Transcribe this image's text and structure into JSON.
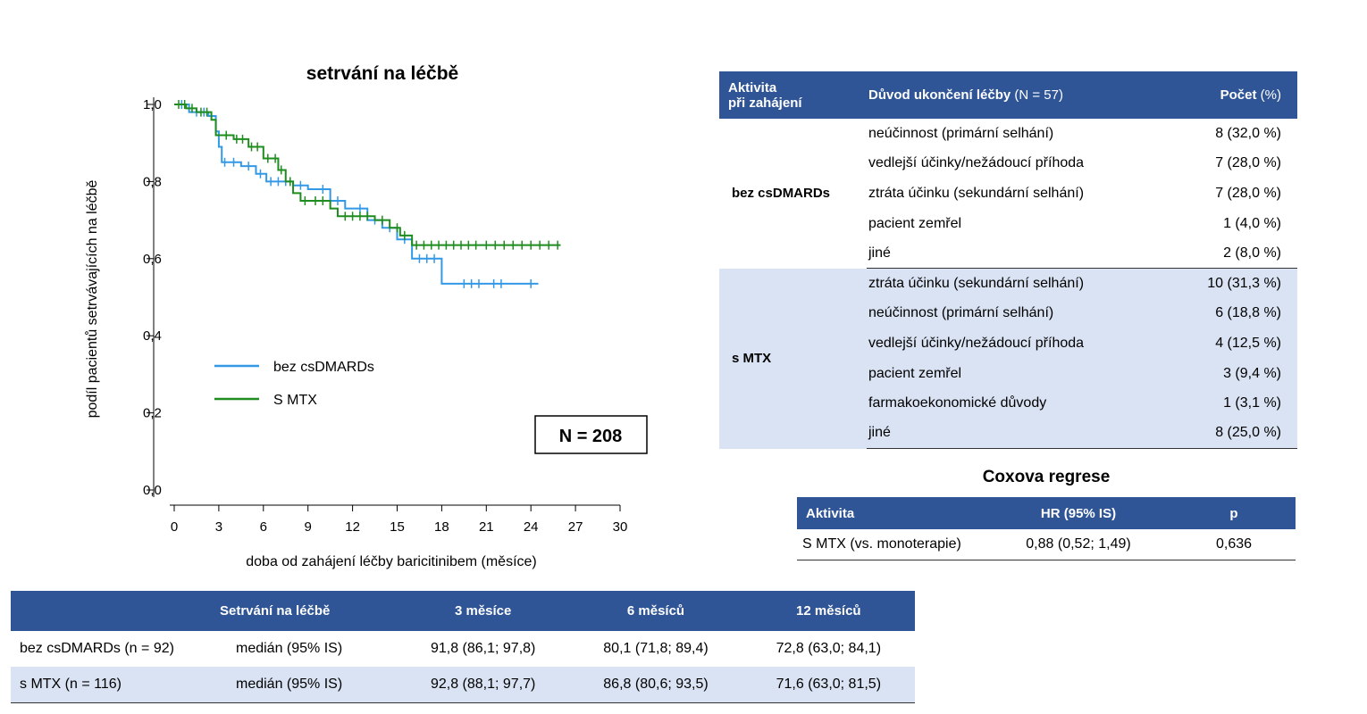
{
  "chart_data": {
    "type": "line",
    "title": "setrvání na léčbě",
    "xlabel": "doba od zahájení léčby baricitinibem (měsíce)",
    "ylabel": "podíl pacientů setrvávajících na léčbě",
    "xlim": [
      0,
      30
    ],
    "ylim": [
      0,
      1.0
    ],
    "x_ticks": [
      "0",
      "3",
      "6",
      "9",
      "12",
      "15",
      "18",
      "21",
      "24",
      "27",
      "30"
    ],
    "y_ticks": [
      "0,0",
      "0,2",
      "0,4",
      "0,6",
      "0,8",
      "1,0"
    ],
    "legend_position": "left-middle",
    "annotation": "N = 208",
    "series": [
      {
        "name": "bez csDMARDs",
        "color": "#3399e6",
        "step_points": [
          [
            0,
            1.0
          ],
          [
            1.0,
            0.98
          ],
          [
            2.3,
            0.97
          ],
          [
            2.8,
            0.93
          ],
          [
            3.0,
            0.89
          ],
          [
            3.2,
            0.85
          ],
          [
            4.5,
            0.84
          ],
          [
            5.5,
            0.82
          ],
          [
            6.2,
            0.8
          ],
          [
            8.0,
            0.79
          ],
          [
            9.0,
            0.78
          ],
          [
            9.5,
            0.78
          ],
          [
            10.5,
            0.75
          ],
          [
            11.5,
            0.73
          ],
          [
            13.0,
            0.7
          ],
          [
            14.0,
            0.68
          ],
          [
            15.0,
            0.65
          ],
          [
            16.0,
            0.6
          ],
          [
            18.0,
            0.535
          ],
          [
            24.5,
            0.535
          ]
        ],
        "censor_x": [
          0.5,
          1.5,
          2.0,
          3.4,
          4.0,
          5.0,
          5.8,
          6.5,
          7.0,
          7.5,
          8.5,
          10.0,
          11.0,
          12.5,
          13.5,
          14.5,
          15.5,
          16.5,
          17.0,
          17.5,
          19.5,
          20.0,
          20.5,
          21.5,
          22.0,
          24.0
        ]
      },
      {
        "name": "S MTX",
        "color": "#1e8c1e",
        "step_points": [
          [
            0,
            1.0
          ],
          [
            0.8,
            0.99
          ],
          [
            1.5,
            0.98
          ],
          [
            2.5,
            0.96
          ],
          [
            2.8,
            0.92
          ],
          [
            4.0,
            0.91
          ],
          [
            5.0,
            0.89
          ],
          [
            6.0,
            0.86
          ],
          [
            7.0,
            0.83
          ],
          [
            7.5,
            0.8
          ],
          [
            8.0,
            0.77
          ],
          [
            8.5,
            0.75
          ],
          [
            10.5,
            0.73
          ],
          [
            11.0,
            0.71
          ],
          [
            13.5,
            0.7
          ],
          [
            14.5,
            0.68
          ],
          [
            15.2,
            0.66
          ],
          [
            16.0,
            0.635
          ],
          [
            26.0,
            0.635
          ]
        ],
        "censor_x": [
          0.3,
          0.7,
          1.2,
          1.8,
          2.2,
          3.5,
          4.2,
          4.6,
          5.2,
          5.6,
          6.3,
          6.8,
          7.2,
          7.8,
          8.8,
          9.5,
          10.0,
          11.5,
          12.0,
          12.5,
          13.0,
          14.0,
          15.0,
          15.5,
          16.3,
          16.8,
          17.3,
          17.8,
          18.3,
          18.8,
          19.3,
          19.8,
          20.3,
          21.0,
          21.6,
          22.2,
          22.8,
          23.4,
          24.0,
          24.6,
          25.2,
          25.8
        ]
      }
    ]
  },
  "reasons_table": {
    "headers": {
      "activity_line1": "Aktivita",
      "activity_line2": "při zahájení",
      "reason_bold": "Důvod ukončení léčby",
      "reason_thin": " (N = 57)",
      "count_bold": "Počet",
      "count_thin": " (%)"
    },
    "groups": [
      {
        "label": "bez csDMARDs",
        "rows": [
          {
            "reason": "neúčinnost (primární selhání)",
            "count": "8 (32,0 %)"
          },
          {
            "reason": "vedlejší účinky/nežádoucí příhoda",
            "count": "7 (28,0 %)"
          },
          {
            "reason": "ztráta účinku (sekundární selhání)",
            "count": "7 (28,0 %)"
          },
          {
            "reason": "pacient zemřel",
            "count": "1 (4,0 %)"
          },
          {
            "reason": "jiné",
            "count": "2 (8,0 %)"
          }
        ]
      },
      {
        "label": "s MTX",
        "rows": [
          {
            "reason": "ztráta účinku (sekundární selhání)",
            "count": "10 (31,3 %)"
          },
          {
            "reason": "neúčinnost (primární selhání)",
            "count": "6 (18,8 %)"
          },
          {
            "reason": "vedlejší účinky/nežádoucí příhoda",
            "count": "4 (12,5 %)"
          },
          {
            "reason": "pacient zemřel",
            "count": "3 (9,4 %)"
          },
          {
            "reason": "farmakoekonomické důvody",
            "count": "1 (3,1 %)"
          },
          {
            "reason": "jiné",
            "count": "8 (25,0 %)"
          }
        ]
      }
    ]
  },
  "cox": {
    "title": "Coxova regrese",
    "headers": [
      "Aktivita",
      "HR (95% IS)",
      "p"
    ],
    "row": [
      "S MTX (vs. monoterapie)",
      "0,88 (0,52; 1,49)",
      "0,636"
    ]
  },
  "persistence_table": {
    "headers": [
      "",
      "Setrvání na léčbě",
      "3 měsíce",
      "6 měsíců",
      "12 měsíců"
    ],
    "rows": [
      [
        "bez csDMARDs (n = 92)",
        "medián (95% IS)",
        "91,8 (86,1; 97,8)",
        "80,1 (71,8; 89,4)",
        "72,8 (63,0; 84,1)"
      ],
      [
        "s MTX (n = 116)",
        "medián (95% IS)",
        "92,8 (88,1; 97,7)",
        "86,8 (80,6; 93,5)",
        "71,6 (63,0; 81,5)"
      ]
    ]
  }
}
